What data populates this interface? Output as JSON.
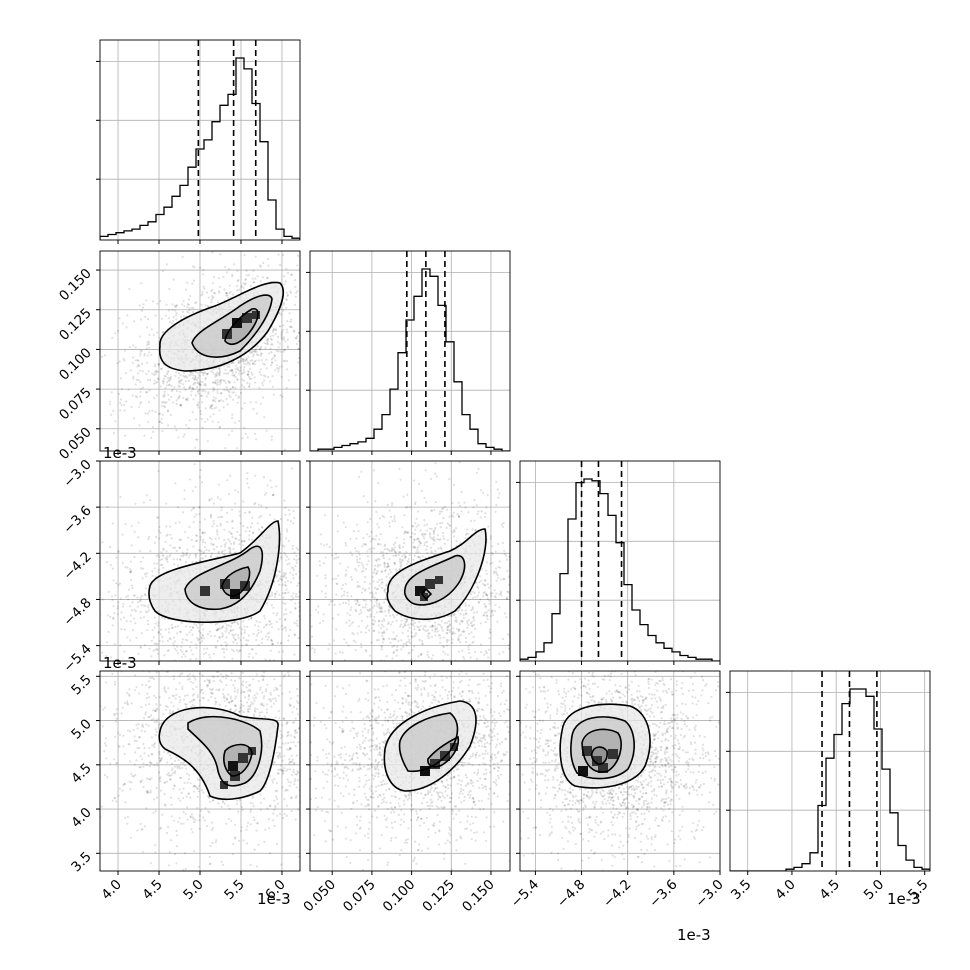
{
  "figure": {
    "background": "#ffffff",
    "line_color": "#000000",
    "grid_color": "#b0b0b0"
  },
  "chart_data": {
    "type": "corner",
    "variables": [
      {
        "index": 0,
        "axis_label": "",
        "offset_text": "1e-3",
        "range": [
          3.78,
          6.22
        ],
        "ticks": [
          4.0,
          4.5,
          5.0,
          5.5,
          6.0
        ],
        "tick_labels": [
          "4.0",
          "4.5",
          "5.0",
          "5.5",
          "6.0"
        ],
        "quantiles": [
          4.98,
          5.41,
          5.68
        ],
        "median": 5.41
      },
      {
        "index": 1,
        "axis_label": "",
        "offset_text": "",
        "range": [
          0.036,
          0.162
        ],
        "ticks": [
          0.05,
          0.075,
          0.1,
          0.125,
          0.15
        ],
        "tick_labels": [
          "0.050",
          "0.075",
          "0.100",
          "0.125",
          "0.150"
        ],
        "quantiles": [
          0.097,
          0.109,
          0.121
        ],
        "median": 0.109
      },
      {
        "index": 2,
        "axis_label": "",
        "offset_text": "1e-3",
        "range": [
          -5.6,
          -3.0
        ],
        "ticks": [
          -5.4,
          -4.8,
          -4.2,
          -3.6,
          -3.0
        ],
        "tick_labels": [
          "−5.4",
          "−4.8",
          "−4.2",
          "−3.6",
          "−3.0"
        ],
        "quantiles": [
          -4.8,
          -4.58,
          -4.28
        ],
        "median": -4.58
      },
      {
        "index": 3,
        "axis_label": "",
        "offset_text": "1e-3",
        "range": [
          3.3,
          5.56
        ],
        "ticks": [
          3.5,
          4.0,
          4.5,
          5.0,
          5.5
        ],
        "tick_labels": [
          "3.5",
          "4.0",
          "4.5",
          "5.0",
          "5.5"
        ],
        "quantiles": [
          4.34,
          4.65,
          4.96
        ],
        "median": 4.65
      }
    ],
    "histograms": [
      {
        "var": 0,
        "bin_start": 3.78,
        "bin_width": 0.0976,
        "counts": [
          2,
          3,
          4,
          5,
          6,
          8,
          10,
          14,
          18,
          24,
          30,
          40,
          50,
          55,
          65,
          74,
          80,
          100,
          94,
          75,
          54,
          22,
          6,
          2,
          1
        ]
      },
      {
        "var": 1,
        "bin_start": 0.036,
        "bin_width": 0.00504,
        "counts": [
          0,
          1,
          1,
          2,
          3,
          4,
          5,
          7,
          12,
          20,
          34,
          54,
          72,
          85,
          100,
          96,
          80,
          60,
          38,
          20,
          12,
          4,
          2,
          1,
          0
        ]
      },
      {
        "var": 2,
        "bin_start": -5.6,
        "bin_width": 0.104,
        "counts": [
          1,
          2,
          5,
          10,
          26,
          48,
          78,
          98,
          100,
          99,
          92,
          80,
          65,
          42,
          28,
          20,
          14,
          10,
          7,
          5,
          3,
          2,
          1,
          1,
          0
        ]
      },
      {
        "var": 3,
        "bin_start": 3.3,
        "bin_width": 0.0904,
        "counts": [
          0,
          0,
          0,
          0,
          0,
          0,
          0,
          1,
          2,
          4,
          10,
          36,
          62,
          75,
          92,
          100,
          100,
          96,
          78,
          56,
          32,
          14,
          6,
          2,
          1
        ]
      }
    ],
    "density_panels": [
      {
        "row": 1,
        "col": 0,
        "x_var": 0,
        "y_var": 1,
        "peak": [
          5.5,
          0.115
        ]
      },
      {
        "row": 2,
        "col": 0,
        "x_var": 0,
        "y_var": 2,
        "peak": [
          5.45,
          -4.76
        ]
      },
      {
        "row": 2,
        "col": 1,
        "x_var": 1,
        "y_var": 2,
        "peak": [
          0.107,
          -4.76
        ]
      },
      {
        "row": 3,
        "col": 0,
        "x_var": 0,
        "y_var": 3,
        "peak": [
          5.5,
          4.4
        ]
      },
      {
        "row": 3,
        "col": 1,
        "x_var": 1,
        "y_var": 3,
        "peak": [
          0.117,
          4.45
        ]
      },
      {
        "row": 3,
        "col": 2,
        "x_var": 2,
        "y_var": 3,
        "peak": [
          -4.7,
          4.55
        ]
      }
    ],
    "grid": true
  }
}
